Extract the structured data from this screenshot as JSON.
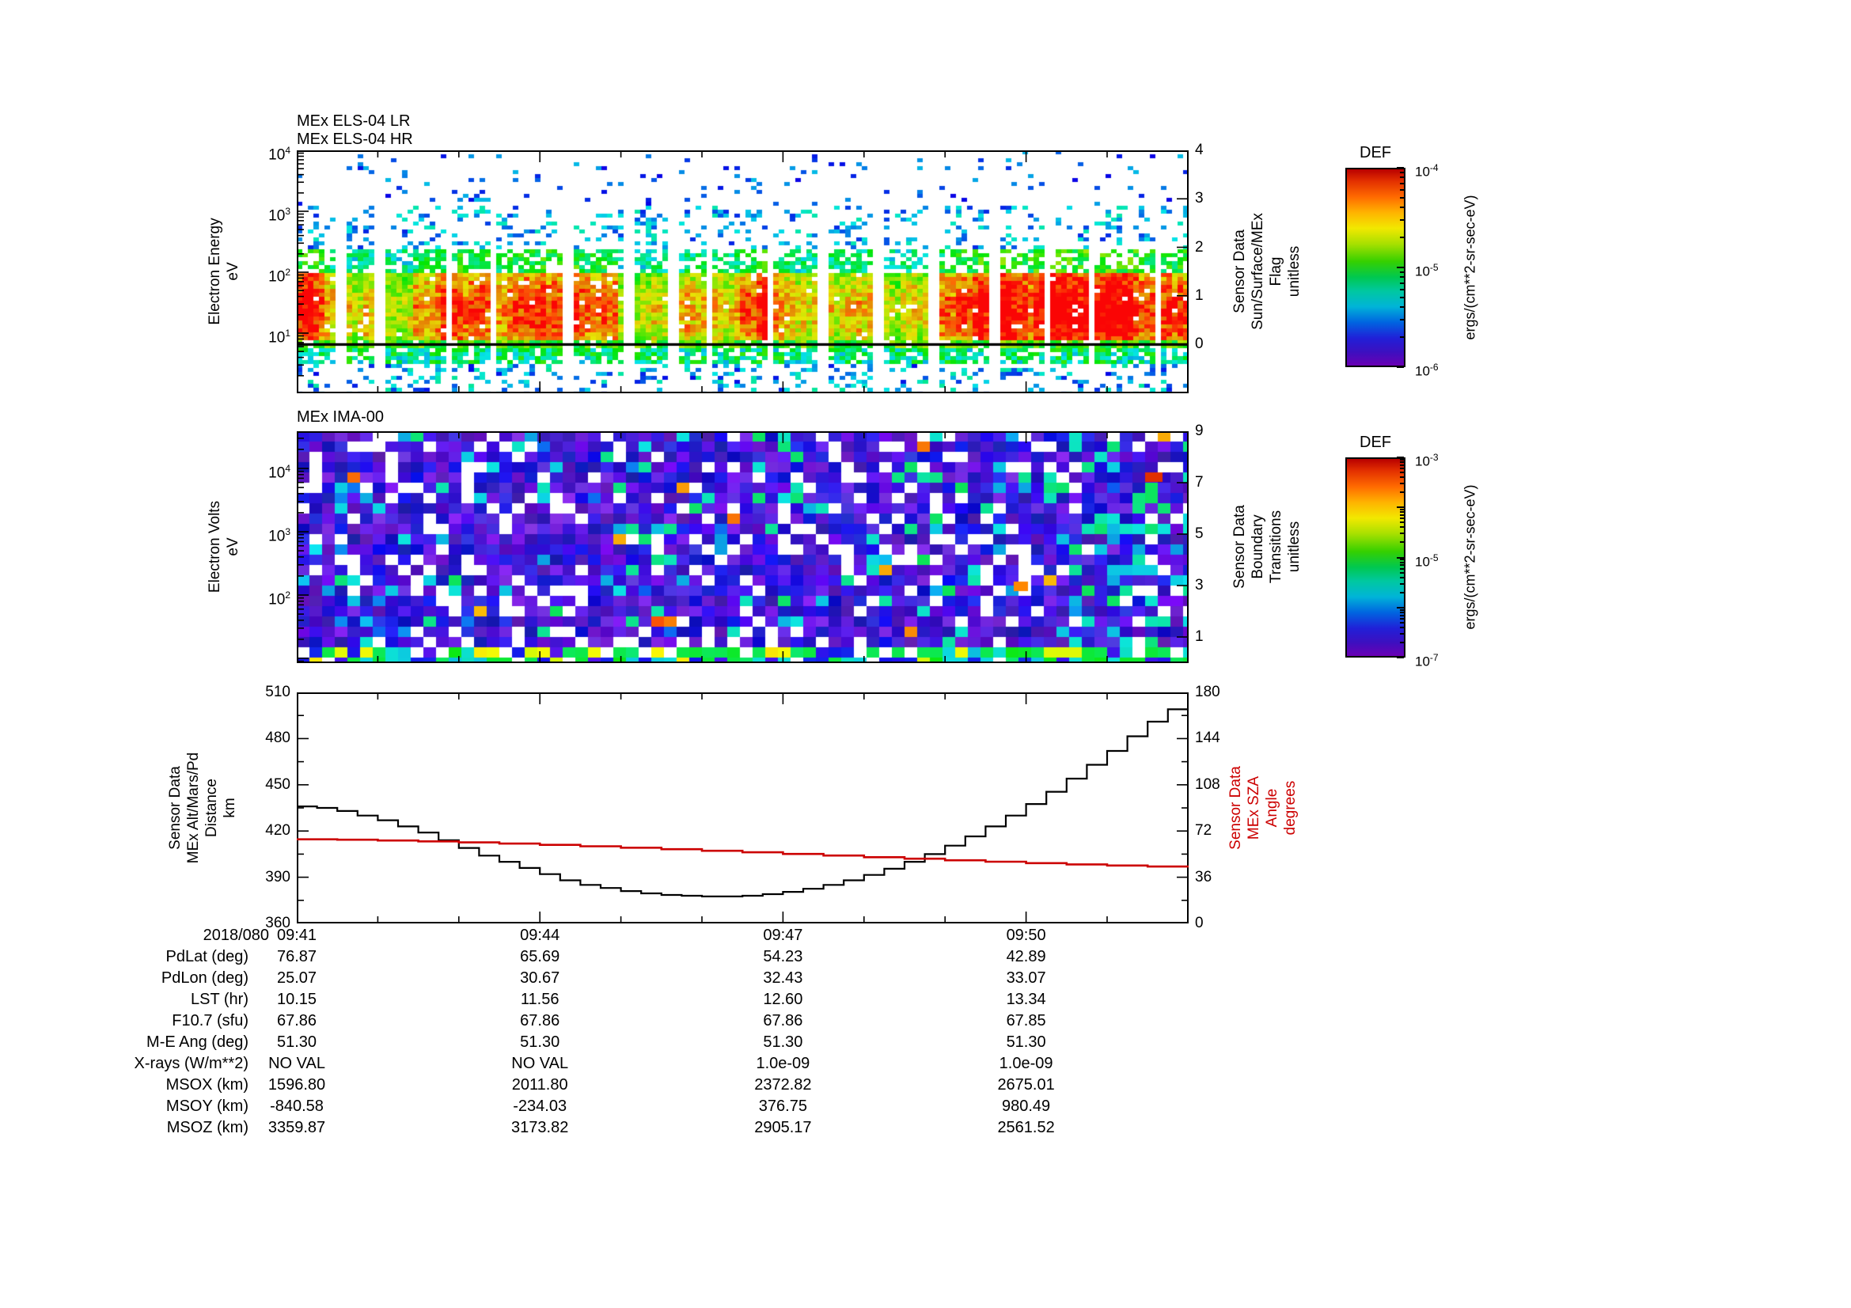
{
  "page": {
    "background": "#ffffff"
  },
  "panels": {
    "els": {
      "title": "MEx ELS-04 LR\nMEx ELS-04 HR",
      "ylabel": "Electron Energy\neV",
      "ytick_exponents": [
        4,
        3,
        2,
        1
      ],
      "right_label": "Sensor Data\nSun/Surface/MEx\nFlag\nunitless",
      "right_ticks": [
        "4",
        "3",
        "2",
        "1",
        "0"
      ]
    },
    "ima": {
      "title": "MEx IMA-00",
      "ylabel": "Electron Volts\neV",
      "ytick_exponents": [
        4,
        3,
        2
      ],
      "right_label": "Sensor Data\nBoundary\nTransitions\nunitless",
      "right_ticks": [
        "9",
        "7",
        "5",
        "3",
        "1"
      ]
    },
    "alt": {
      "ylabel": "Sensor Data\nMEx Alt/Mars/Pd\nDistance\nkm",
      "yticks": [
        "510",
        "480",
        "450",
        "420",
        "390",
        "360"
      ],
      "right_label": "Sensor Data\nMEx SZA\nAngle\ndegrees",
      "right_ticks": [
        "180",
        "144",
        "108",
        "72",
        "36",
        "0"
      ],
      "right_axis_color": "#cc0000"
    }
  },
  "xaxis": {
    "date_label": "2018/080",
    "tick_labels": [
      "09:41",
      "09:44",
      "09:47",
      "09:50"
    ]
  },
  "colorbars": [
    {
      "title": "DEF",
      "units": "ergs/(cm**2-sr-sec-eV)",
      "tick_exponents": [
        -4,
        -5,
        -6
      ],
      "decades": 2
    },
    {
      "title": "DEF",
      "units": "ergs/(cm**2-sr-sec-eV)",
      "tick_exponents": [
        -3,
        -5,
        -7
      ],
      "decades": 4
    }
  ],
  "table": {
    "row_labels": [
      "PdLat (deg)",
      "PdLon (deg)",
      "LST (hr)",
      "F10.7 (sfu)",
      "M-E Ang (deg)",
      "X-rays (W/m**2)",
      "MSOX (km)",
      "MSOY (km)",
      "MSOZ (km)"
    ],
    "rows": [
      [
        "76.87",
        "65.69",
        "54.23",
        "42.89"
      ],
      [
        "25.07",
        "30.67",
        "32.43",
        "33.07"
      ],
      [
        "10.15",
        "11.56",
        "12.60",
        "13.34"
      ],
      [
        "67.86",
        "67.86",
        "67.86",
        "67.85"
      ],
      [
        "51.30",
        "51.30",
        "51.30",
        "51.30"
      ],
      [
        "NO VAL",
        "NO VAL",
        "1.0e-09",
        "1.0e-09"
      ],
      [
        "1596.80",
        "2011.80",
        "2372.82",
        "2675.01"
      ],
      [
        "-840.58",
        "-234.03",
        "376.75",
        "980.49"
      ],
      [
        "3359.87",
        "3173.82",
        "2905.17",
        "2561.52"
      ]
    ]
  },
  "chart_data": [
    {
      "id": "els",
      "type": "heatmap",
      "title": "MEx ELS-04 LR / MEx ELS-04 HR",
      "ylabel": "Electron Energy (eV)",
      "y_log_range": [
        1,
        10000
      ],
      "time_start": "2018/080 09:41",
      "time_end": "2018/080 09:52",
      "colorbar": {
        "title": "DEF",
        "units": "ergs/(cm**2-sr-sec-eV)",
        "min": 1e-06,
        "max": 0.0001
      },
      "right_axis": {
        "label": "Sensor Data Sun/Surface/MEx Flag (unitless)",
        "range": [
          0,
          4
        ],
        "flag_value": 0
      },
      "summary": "Intense red/orange electron flux band between ~8 and 300 eV with periodic vertical telemetry gaps; strongest flux 09:41-09:45; sparse blue/cyan points above 1 keV; constant flag line plotted at 0."
    },
    {
      "id": "ima",
      "type": "heatmap",
      "title": "MEx IMA-00",
      "ylabel": "Electron Volts (eV)",
      "y_log_range": [
        8,
        20000
      ],
      "time_start": "2018/080 09:41",
      "time_end": "2018/080 09:52",
      "colorbar": {
        "title": "DEF",
        "units": "ergs/(cm**2-sr-sec-eV)",
        "min": 1e-07,
        "max": 0.001
      },
      "right_axis": {
        "label": "Sensor Data Boundary Transitions (unitless)",
        "range": [
          0,
          9
        ]
      },
      "summary": "Blocky low-flux blue/purple spectrogram with scattered white data gaps, a green/cyan enhancement band at the lowest energies, increased green flux toward 09:51 and isolated orange/red cells near the right edge."
    },
    {
      "id": "altitude",
      "type": "line",
      "x_unit": "minutes after 09:41 UT",
      "x_tick_minutes": [
        0,
        3,
        6,
        9
      ],
      "xticks": [
        "09:41",
        "09:44",
        "09:47",
        "09:50"
      ],
      "date": "2018/080",
      "series": [
        {
          "name": "Sensor Data MEx Alt/Mars/Pd Distance (km)",
          "axis": "left",
          "color": "#000000",
          "ylim": [
            360,
            510
          ],
          "x": [
            0,
            0.25,
            0.5,
            0.75,
            1,
            1.25,
            1.5,
            1.75,
            2,
            2.25,
            2.5,
            2.75,
            3,
            3.25,
            3.5,
            3.75,
            4,
            4.25,
            4.5,
            4.75,
            5,
            5.25,
            5.5,
            5.75,
            6,
            6.25,
            6.5,
            6.75,
            7,
            7.25,
            7.5,
            7.75,
            8,
            8.25,
            8.5,
            8.75,
            9,
            9.25,
            9.5,
            9.75,
            10,
            10.25,
            10.5,
            10.75,
            11
          ],
          "y": [
            436,
            435,
            433,
            430,
            427,
            423,
            419,
            414,
            409,
            404,
            400,
            396,
            392,
            388,
            385,
            383,
            381,
            379.5,
            378.5,
            378,
            377.5,
            377.5,
            378,
            379,
            380.5,
            382.5,
            385,
            388,
            391.5,
            395.5,
            400,
            405,
            410.5,
            416.5,
            423,
            430,
            437.5,
            445.5,
            454,
            463,
            472,
            481.5,
            491,
            499,
            506
          ]
        },
        {
          "name": "Sensor Data MEx SZA Angle (degrees)",
          "axis": "right",
          "color": "#cc0000",
          "ylim": [
            0,
            180
          ],
          "x": [
            0,
            0.5,
            1,
            1.5,
            2,
            2.5,
            3,
            3.5,
            4,
            4.5,
            5,
            5.5,
            6,
            6.5,
            7,
            7.5,
            8,
            8.5,
            9,
            9.5,
            10,
            10.5,
            11
          ],
          "y": [
            65.5,
            65.2,
            64.6,
            63.9,
            63.1,
            62.2,
            61.2,
            60.1,
            59,
            57.8,
            56.6,
            55.4,
            54.1,
            52.9,
            51.6,
            50.4,
            49.2,
            48.1,
            47,
            46,
            45.1,
            44.3,
            43.6
          ]
        }
      ]
    }
  ]
}
